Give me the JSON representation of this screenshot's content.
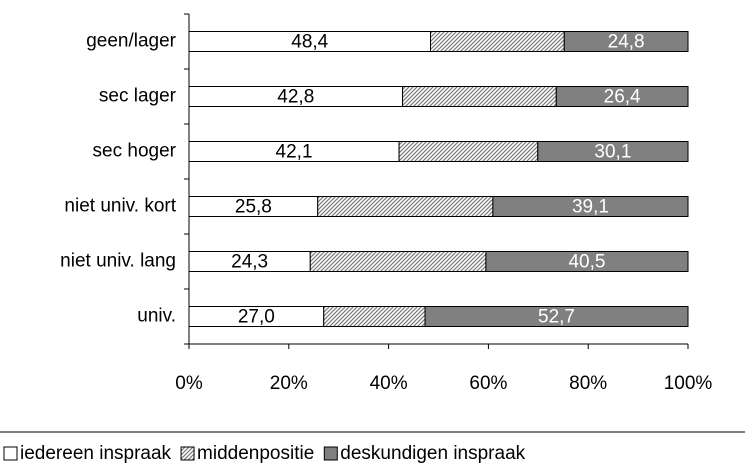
{
  "chart_data": {
    "type": "stacked_barh",
    "categories": [
      "geen/lager",
      "sec lager",
      "sec hoger",
      "niet univ. kort",
      "niet univ. lang",
      "univ."
    ],
    "series": [
      {
        "name": "iedereen inspraak",
        "color": "#ffffff",
        "label_color": "#000000",
        "values": [
          48.4,
          42.8,
          42.1,
          25.8,
          24.3,
          27.0
        ],
        "value_labels": [
          "48,4",
          "42,8",
          "42,1",
          "25,8",
          "24,3",
          "27,0"
        ]
      },
      {
        "name": "middenpositie",
        "color": "#7a7a7a",
        "hatch": true,
        "values": [
          26.8,
          30.8,
          27.8,
          35.1,
          35.2,
          20.3
        ]
      },
      {
        "name": "deskundigen inspraak",
        "color": "#808080",
        "label_color": "#ffffff",
        "values": [
          24.8,
          26.4,
          30.1,
          39.1,
          40.5,
          52.7
        ],
        "value_labels": [
          "24,8",
          "26,4",
          "30,1",
          "39,1",
          "40,5",
          "52,7"
        ]
      }
    ],
    "xlim": [
      0,
      100
    ],
    "xticks": [
      {
        "value": 0,
        "label": "0%"
      },
      {
        "value": 20,
        "label": "20%"
      },
      {
        "value": 40,
        "label": "40%"
      },
      {
        "value": 60,
        "label": "60%"
      },
      {
        "value": 80,
        "label": "80%"
      },
      {
        "value": 100,
        "label": "100%"
      }
    ],
    "legend": "bottom"
  }
}
